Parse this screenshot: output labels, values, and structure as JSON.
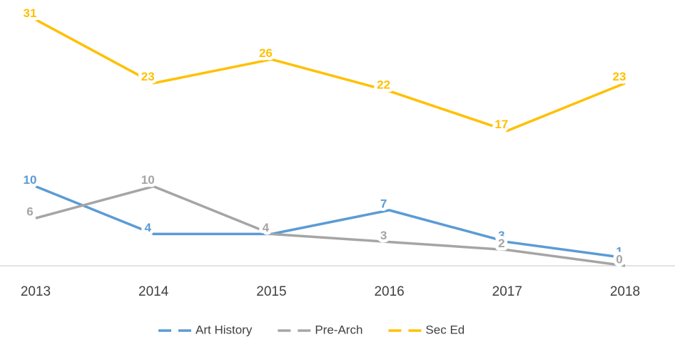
{
  "chart_data": {
    "type": "line",
    "categories": [
      "2013",
      "2014",
      "2015",
      "2016",
      "2017",
      "2018"
    ],
    "series": [
      {
        "name": "Art History",
        "color": "#5b9bd5",
        "values": [
          10,
          4,
          4,
          7,
          3,
          1
        ]
      },
      {
        "name": "Pre-Arch",
        "color": "#a5a5a5",
        "values": [
          6,
          10,
          4,
          3,
          2,
          0
        ]
      },
      {
        "name": "Sec Ed",
        "color": "#ffc000",
        "values": [
          31,
          23,
          26,
          22,
          17,
          23
        ]
      }
    ],
    "ylim": [
      0,
      35
    ],
    "legend": "bottom"
  }
}
